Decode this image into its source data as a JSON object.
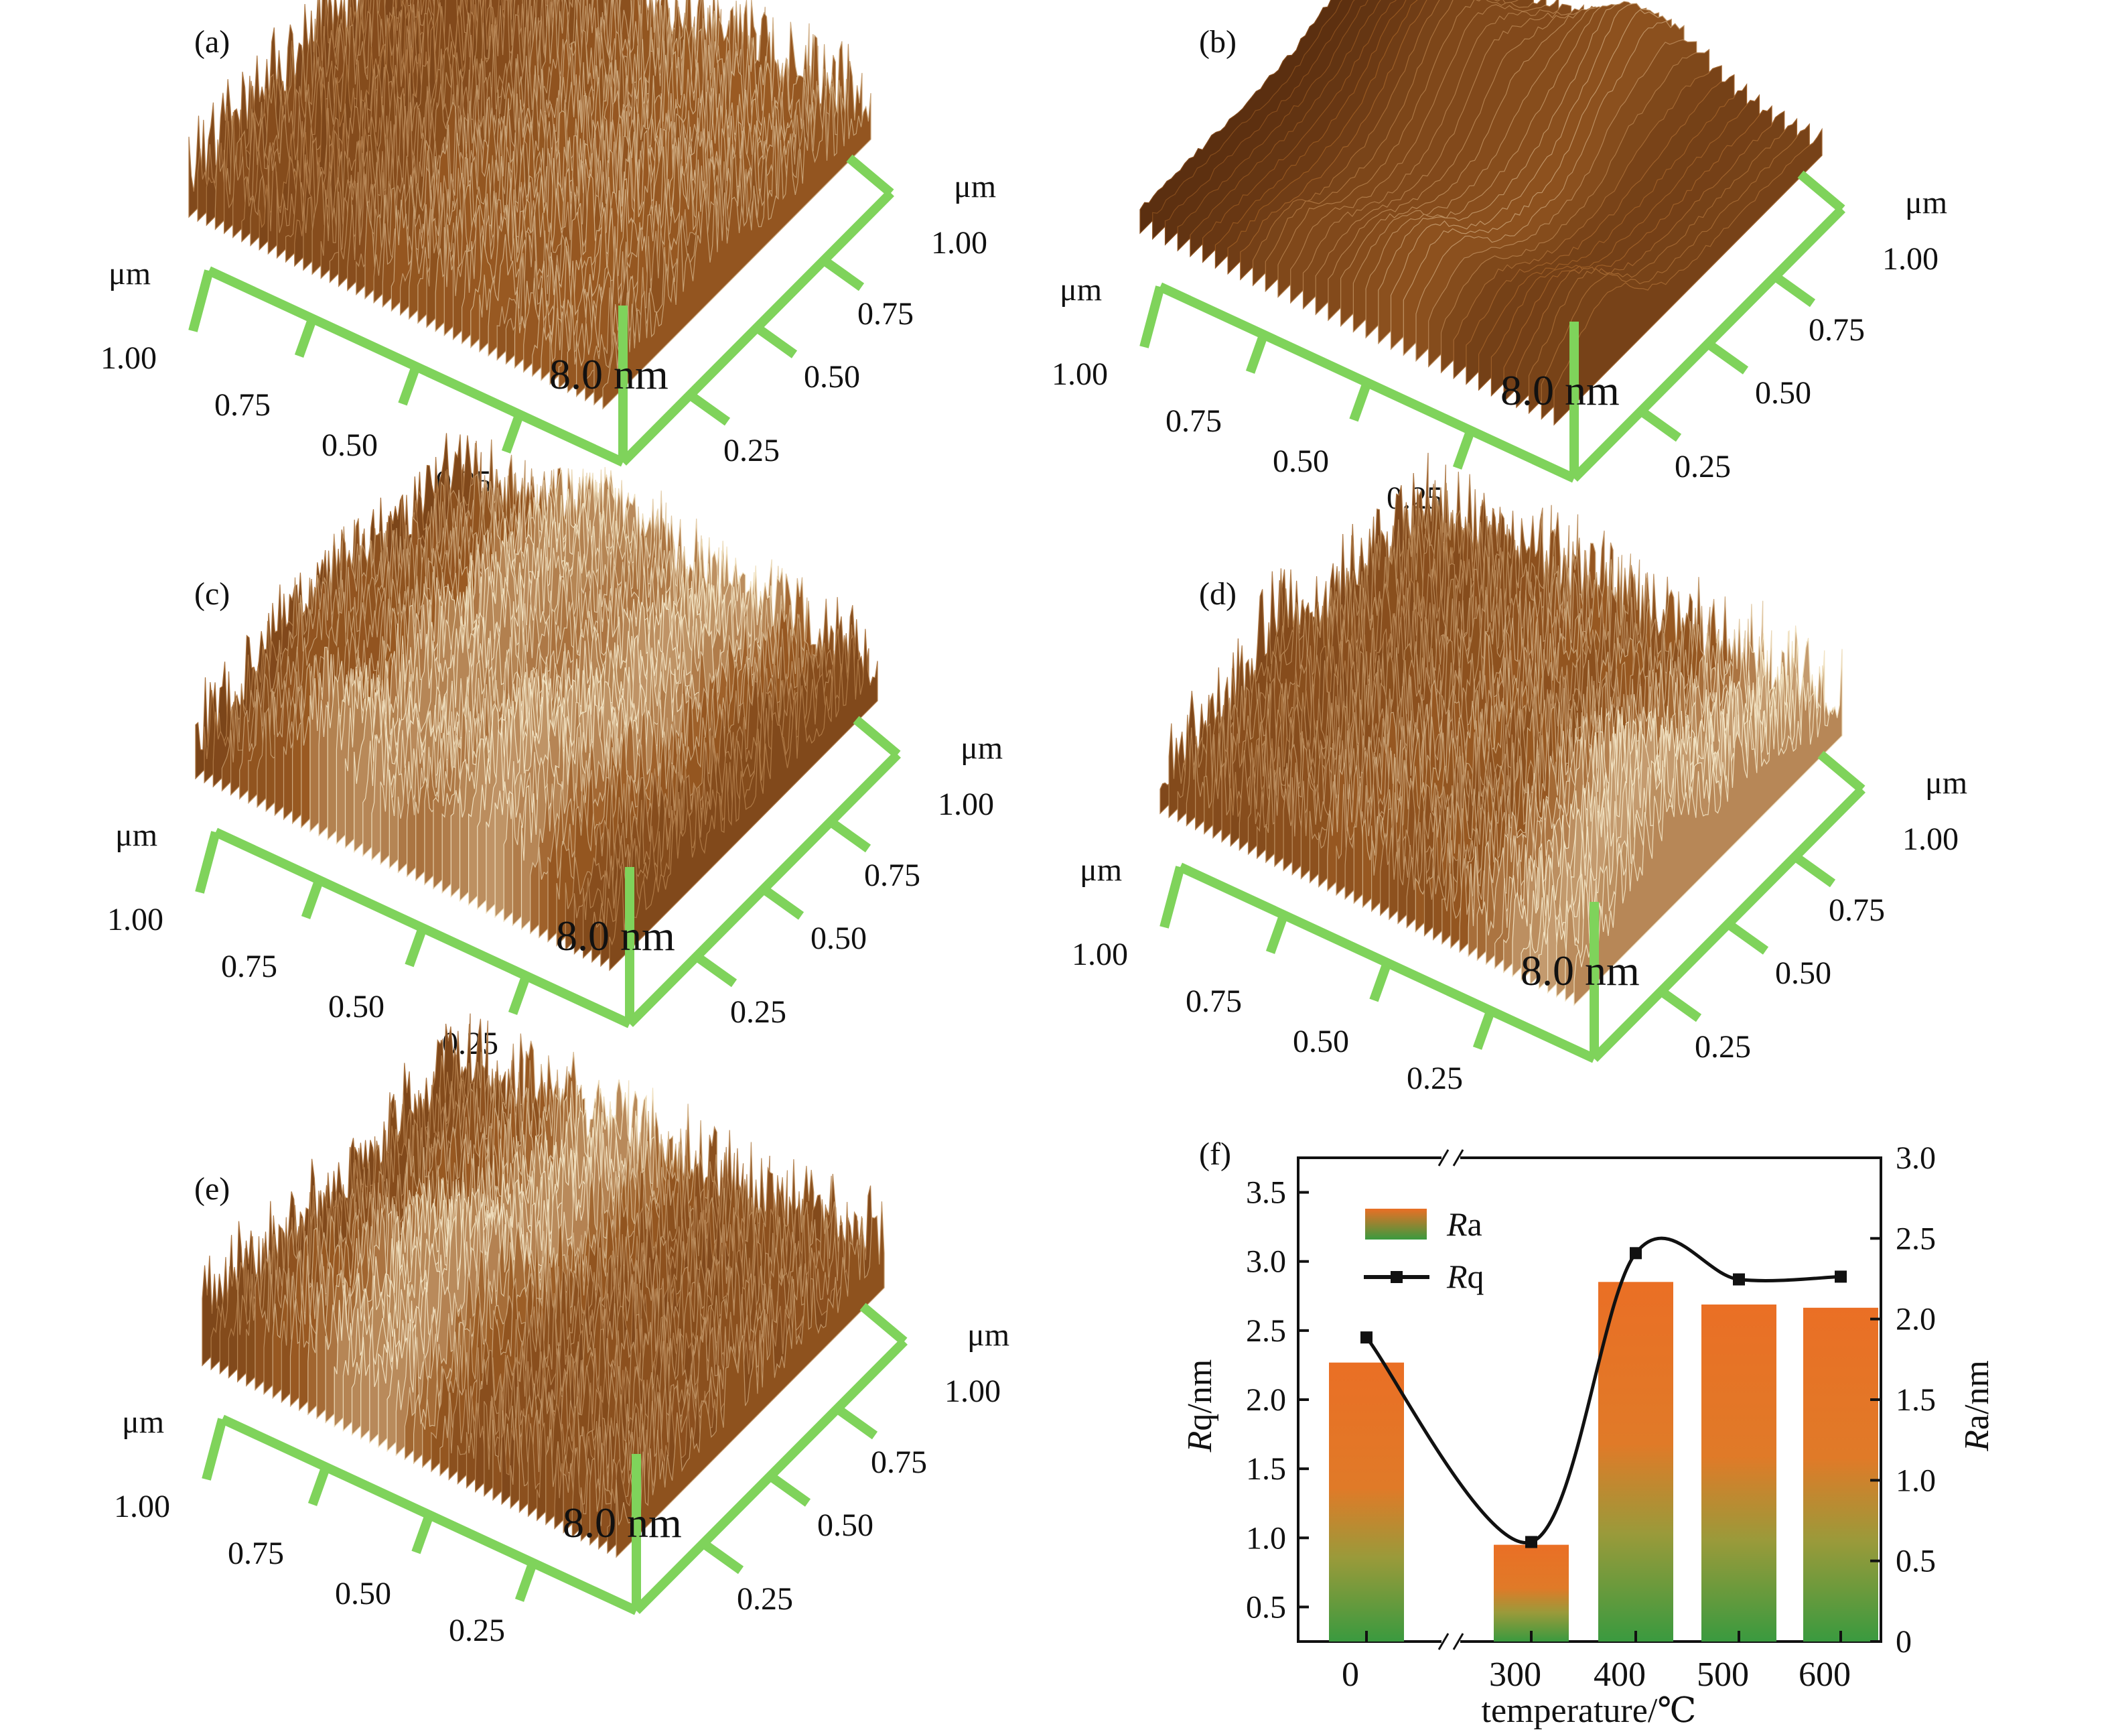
{
  "figure": {
    "panels": [
      {
        "label": "(a)",
        "unit_left": "μm",
        "unit_right": "μm",
        "left_ticks": [
          "1.00",
          "0.75",
          "0.50",
          "0.25"
        ],
        "right_ticks": [
          "1.00",
          "0.75",
          "0.50",
          "0.25"
        ],
        "z_label": "8.0 nm",
        "surface": "fine-dense-peaks"
      },
      {
        "label": "(b)",
        "unit_left": "μm",
        "unit_right": "μm",
        "left_ticks": [
          "1.00",
          "0.75",
          "0.50",
          "0.25"
        ],
        "right_ticks": [
          "1.00",
          "0.75",
          "0.50",
          "0.25"
        ],
        "z_label": "8.0 nm",
        "surface": "smooth-broad-hills"
      },
      {
        "label": "(c)",
        "unit_left": "μm",
        "unit_right": "μm",
        "left_ticks": [
          "1.00",
          "0.75",
          "0.50",
          "0.25"
        ],
        "right_ticks": [
          "1.00",
          "0.75",
          "0.50",
          "0.25"
        ],
        "z_label": "8.0 nm",
        "surface": "coarse-grains"
      },
      {
        "label": "(d)",
        "unit_left": "μm",
        "unit_right": "μm",
        "left_ticks": [
          "1.00",
          "0.75",
          "0.50",
          "0.25"
        ],
        "right_ticks": [
          "1.00",
          "0.75",
          "0.50",
          "0.25"
        ],
        "z_label": "8.0 nm",
        "surface": "fine-dense-peaks"
      },
      {
        "label": "(e)",
        "unit_left": "μm",
        "unit_right": "μm",
        "left_ticks": [
          "1.00",
          "0.75",
          "0.50",
          "0.25"
        ],
        "right_ticks": [
          "1.00",
          "0.75",
          "0.50",
          "0.25"
        ],
        "z_label": "8.0 nm",
        "surface": "fine-dense-peaks"
      }
    ],
    "colors": {
      "afm_dark": "#3a1806",
      "afm_mid": "#9a5a22",
      "afm_light": "#f1e2c2",
      "axis_green": "#7fd35b",
      "bar_top": "#ea6f25",
      "bar_bottom": "#3a9a3f"
    }
  },
  "chart_data": {
    "type": "bar",
    "panel_label": "(f)",
    "categories": [
      "0",
      "300",
      "400",
      "500",
      "600"
    ],
    "xlabel": "temperature/℃",
    "ylabel_left": {
      "italic": "R",
      "rest": "q/nm"
    },
    "ylabel_right": {
      "italic": "R",
      "rest": "a/nm"
    },
    "left_ticks": [
      "0.5",
      "1.0",
      "1.5",
      "2.0",
      "2.5",
      "3.0",
      "3.5"
    ],
    "right_ticks": [
      "0",
      "0.5",
      "1.0",
      "1.5",
      "2.0",
      "2.5",
      "3.0"
    ],
    "ylim_left": [
      0.25,
      3.75
    ],
    "ylim_right": [
      0,
      3.0
    ],
    "axis_break": true,
    "series": [
      {
        "name_italic": "R",
        "name_rest": "a",
        "type": "bar",
        "axis": "right",
        "values": [
          1.73,
          0.6,
          2.23,
          2.09,
          2.07
        ]
      },
      {
        "name_italic": "R",
        "name_rest": "q",
        "type": "line",
        "axis": "left",
        "values": [
          2.45,
          0.97,
          3.06,
          2.87,
          2.89
        ]
      }
    ],
    "legend": "top-left"
  }
}
